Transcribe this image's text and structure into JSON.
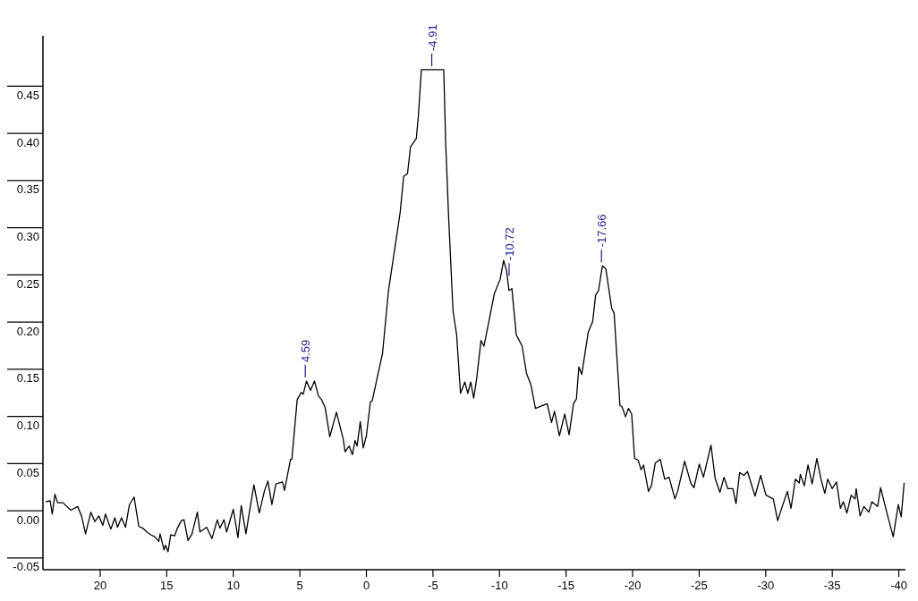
{
  "chart_data": {
    "type": "line",
    "x": [
      24.1,
      23.76,
      23.6,
      23.4,
      23.2,
      22.8,
      22.2,
      21.7,
      21.4,
      21.1,
      20.7,
      20.4,
      20.1,
      19.8,
      19.6,
      19.2,
      18.9,
      18.7,
      18.4,
      18.1,
      17.8,
      17.45,
      17.1,
      16.8,
      16.5,
      16.2,
      15.9,
      15.6,
      15.5,
      15.2,
      15.1,
      14.9,
      14.7,
      14.4,
      14.2,
      13.9,
      13.7,
      13.4,
      13.1,
      12.7,
      12.5,
      12.0,
      11.6,
      11.2,
      11.0,
      10.7,
      10.5,
      10.0,
      9.65,
      9.4,
      9.05,
      8.8,
      8.45,
      8.05,
      7.65,
      7.4,
      7.1,
      6.8,
      6.3,
      6.15,
      5.7,
      5.6,
      5.2,
      4.9,
      4.75,
      4.5,
      4.2,
      3.9,
      3.6,
      3.4,
      3.1,
      2.75,
      2.25,
      1.75,
      1.6,
      1.3,
      1.05,
      0.85,
      0.7,
      0.46,
      0.24,
      0.0,
      -0.3,
      -0.44,
      -0.88,
      -1.21,
      -1.66,
      -1.99,
      -2.32,
      -2.54,
      -2.8,
      -3.09,
      -3.31,
      -3.75,
      -3.91,
      -4.13,
      -5.81,
      -5.96,
      -6.18,
      -6.51,
      -6.78,
      -7.07,
      -7.4,
      -7.62,
      -7.84,
      -8.06,
      -8.28,
      -8.61,
      -8.83,
      -9.27,
      -9.6,
      -10.05,
      -10.31,
      -10.53,
      -10.71,
      -10.93,
      -11.26,
      -11.7,
      -12.03,
      -12.36,
      -12.7,
      -13.58,
      -13.91,
      -14.13,
      -14.5,
      -14.9,
      -15.23,
      -15.56,
      -15.78,
      -15.96,
      -16.18,
      -16.67,
      -17.0,
      -17.22,
      -17.44,
      -17.73,
      -17.99,
      -18.43,
      -18.61,
      -19.05,
      -19.2,
      -19.47,
      -19.69,
      -19.93,
      -20.15,
      -20.42,
      -20.64,
      -20.82,
      -21.19,
      -21.41,
      -21.7,
      -22.08,
      -22.41,
      -22.74,
      -23.18,
      -23.4,
      -23.91,
      -24.39,
      -24.61,
      -25.01,
      -25.32,
      -25.89,
      -26.2,
      -26.56,
      -26.87,
      -27.15,
      -27.53,
      -27.77,
      -28.04,
      -28.36,
      -28.63,
      -29.2,
      -29.62,
      -30.02,
      -30.57,
      -30.9,
      -31.24,
      -31.63,
      -31.9,
      -32.23,
      -32.52,
      -32.6,
      -32.9,
      -33.18,
      -33.49,
      -33.84,
      -34.15,
      -34.44,
      -34.66,
      -34.99,
      -35.32,
      -35.61,
      -35.83,
      -36.1,
      -36.42,
      -36.71,
      -36.8,
      -37.09,
      -37.38,
      -37.75,
      -37.97,
      -38.41,
      -38.63,
      -39.18,
      -39.58,
      -39.96,
      -40.18,
      -40.4
    ],
    "series": [
      {
        "color": "#000000",
        "values": [
          0.019,
          0.02,
          0.006,
          0.027,
          0.018,
          0.018,
          0.01,
          0.014,
          0.004,
          -0.015,
          0.008,
          -0.002,
          0.004,
          -0.006,
          0.006,
          -0.01,
          0.002,
          -0.008,
          0.002,
          -0.008,
          0.016,
          0.024,
          -0.007,
          -0.009,
          -0.013,
          -0.016,
          -0.018,
          -0.023,
          -0.015,
          -0.032,
          -0.027,
          -0.034,
          -0.016,
          -0.017,
          -0.009,
          -0.001,
          0.0,
          -0.022,
          -0.015,
          0.008,
          -0.013,
          -0.008,
          -0.02,
          0.0,
          -0.009,
          0.0,
          -0.013,
          0.011,
          -0.019,
          0.015,
          -0.015,
          0.007,
          0.037,
          0.007,
          0.031,
          0.041,
          0.016,
          0.038,
          0.04,
          0.031,
          0.064,
          0.064,
          0.127,
          0.135,
          0.133,
          0.147,
          0.137,
          0.147,
          0.131,
          0.128,
          0.119,
          0.088,
          0.114,
          0.086,
          0.072,
          0.078,
          0.069,
          0.084,
          0.078,
          0.104,
          0.076,
          0.089,
          0.125,
          0.126,
          0.155,
          0.176,
          0.243,
          0.274,
          0.305,
          0.326,
          0.364,
          0.367,
          0.395,
          0.404,
          0.429,
          0.477,
          0.477,
          0.398,
          0.32,
          0.221,
          0.196,
          0.134,
          0.146,
          0.134,
          0.146,
          0.129,
          0.149,
          0.19,
          0.184,
          0.215,
          0.239,
          0.255,
          0.275,
          0.264,
          0.243,
          0.245,
          0.196,
          0.184,
          0.155,
          0.143,
          0.118,
          0.123,
          0.103,
          0.115,
          0.089,
          0.112,
          0.09,
          0.123,
          0.128,
          0.162,
          0.154,
          0.199,
          0.21,
          0.238,
          0.243,
          0.269,
          0.266,
          0.224,
          0.219,
          0.121,
          0.12,
          0.109,
          0.118,
          0.112,
          0.065,
          0.063,
          0.053,
          0.058,
          0.03,
          0.036,
          0.06,
          0.064,
          0.043,
          0.045,
          0.022,
          0.031,
          0.062,
          0.038,
          0.034,
          0.059,
          0.045,
          0.079,
          0.044,
          0.029,
          0.045,
          0.033,
          0.033,
          0.017,
          0.05,
          0.047,
          0.051,
          0.025,
          0.047,
          0.026,
          0.022,
          -0.001,
          0.014,
          0.03,
          0.012,
          0.043,
          0.039,
          0.048,
          0.036,
          0.058,
          0.038,
          0.065,
          0.043,
          0.028,
          0.043,
          0.033,
          0.04,
          0.012,
          0.019,
          0.007,
          0.026,
          0.022,
          0.033,
          0.004,
          0.014,
          0.008,
          0.019,
          0.014,
          0.034,
          0.003,
          -0.018,
          0.016,
          0.003,
          0.039
        ]
      }
    ],
    "xlim": [
      24.3,
      -40.5
    ],
    "xticks": [
      20,
      15,
      10,
      5,
      0,
      -5,
      -10,
      -15,
      -20,
      -25,
      -30,
      -35,
      -40
    ],
    "ylim": [
      -0.053,
      0.513
    ],
    "yticks": [
      {
        "value": -0.05,
        "label": "-0.05"
      },
      {
        "value": 0,
        "label": "0.00"
      },
      {
        "value": 0.05,
        "label": "0.05"
      },
      {
        "value": 0.1,
        "label": "0.10"
      },
      {
        "value": 0.15,
        "label": "0.15"
      },
      {
        "value": 0.2,
        "label": "0.20"
      },
      {
        "value": 0.25,
        "label": "0.25"
      },
      {
        "value": 0.3,
        "label": "0.30"
      },
      {
        "value": 0.35,
        "label": "0.35"
      },
      {
        "value": 0.4,
        "label": "0.40"
      },
      {
        "value": 0.45,
        "label": "0.45"
      }
    ],
    "annotations": [
      {
        "text": "4.59",
        "x": 4.59,
        "y": 0.147
      },
      {
        "text": "-4.91",
        "x": -4.91,
        "y": 0.477
      },
      {
        "text": "-10.72",
        "x": -10.72,
        "y": 0.255
      },
      {
        "text": "-17.66",
        "x": -17.66,
        "y": 0.269
      }
    ]
  }
}
